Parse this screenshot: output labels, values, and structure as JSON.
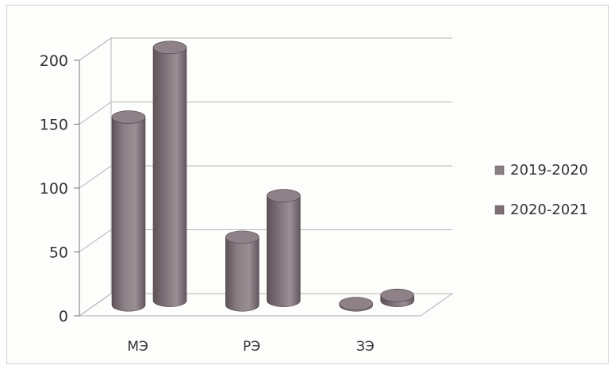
{
  "chart_data": {
    "type": "bar",
    "categories": [
      "МЭ",
      "РЭ",
      "ЗЭ"
    ],
    "series": [
      {
        "name": "2019-2020",
        "values": [
          147,
          53,
          1
        ],
        "color": "#8a7f84"
      },
      {
        "name": "2020-2021",
        "values": [
          198,
          82,
          4
        ],
        "color": "#7f6f77"
      }
    ],
    "ylim": [
      0,
      200
    ],
    "yticks": [
      0,
      50,
      100,
      150,
      200
    ],
    "grid": true,
    "legend_position": "right",
    "style": "3d-cylinder"
  }
}
